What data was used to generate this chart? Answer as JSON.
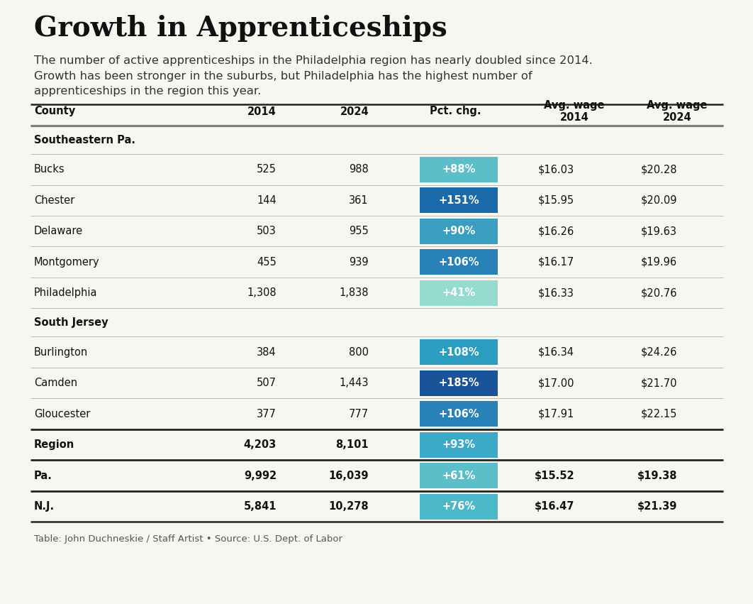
{
  "title": "Growth in Apprenticeships",
  "subtitle_lines": [
    "The number of active apprenticeships in the Philadelphia region has nearly doubled since 2014.",
    "Growth has been stronger in the suburbs, but Philadelphia has the highest number of",
    "apprenticeships in the region this year."
  ],
  "col_headers": [
    "County",
    "2014",
    "2024",
    "Pct. chg.",
    "Avg. wage\n2014",
    "Avg. wage\n2024"
  ],
  "rows": [
    {
      "county": "Bucks",
      "val2014": "525",
      "val2024": "988",
      "pct": "+88%",
      "wage2014": "$16.03",
      "wage2024": "$20.28",
      "pct_color": "#5bbec8",
      "bold": false,
      "kind": "data"
    },
    {
      "county": "Chester",
      "val2014": "144",
      "val2024": "361",
      "pct": "+151%",
      "wage2014": "$15.95",
      "wage2024": "$20.09",
      "pct_color": "#1a6aaa",
      "bold": false,
      "kind": "data"
    },
    {
      "county": "Delaware",
      "val2014": "503",
      "val2024": "955",
      "pct": "+90%",
      "wage2014": "$16.26",
      "wage2024": "$19.63",
      "pct_color": "#3a9ec0",
      "bold": false,
      "kind": "data"
    },
    {
      "county": "Montgomery",
      "val2014": "455",
      "val2024": "939",
      "pct": "+106%",
      "wage2014": "$16.17",
      "wage2024": "$19.96",
      "pct_color": "#2882b8",
      "bold": false,
      "kind": "data"
    },
    {
      "county": "Philadelphia",
      "val2014": "1,308",
      "val2024": "1,838",
      "pct": "+41%",
      "wage2014": "$16.33",
      "wage2024": "$20.76",
      "pct_color": "#96dbd0",
      "bold": false,
      "kind": "data"
    },
    {
      "county": "Burlington",
      "val2014": "384",
      "val2024": "800",
      "pct": "+108%",
      "wage2014": "$16.34",
      "wage2024": "$24.26",
      "pct_color": "#2a9dc0",
      "bold": false,
      "kind": "data"
    },
    {
      "county": "Camden",
      "val2014": "507",
      "val2024": "1,443",
      "pct": "+185%",
      "wage2014": "$17.00",
      "wage2024": "$21.70",
      "pct_color": "#1a5498",
      "bold": false,
      "kind": "data"
    },
    {
      "county": "Gloucester",
      "val2014": "377",
      "val2024": "777",
      "pct": "+106%",
      "wage2014": "$17.91",
      "wage2024": "$22.15",
      "pct_color": "#2882b8",
      "bold": false,
      "kind": "data"
    },
    {
      "county": "Region",
      "val2014": "4,203",
      "val2024": "8,101",
      "pct": "+93%",
      "wage2014": "",
      "wage2024": "",
      "pct_color": "#3aaac8",
      "bold": true,
      "kind": "summary"
    },
    {
      "county": "Pa.",
      "val2014": "9,992",
      "val2024": "16,039",
      "pct": "+61%",
      "wage2014": "$15.52",
      "wage2024": "$19.38",
      "pct_color": "#5bbec8",
      "bold": true,
      "kind": "summary"
    },
    {
      "county": "N.J.",
      "val2014": "5,841",
      "val2024": "10,278",
      "pct": "+76%",
      "wage2014": "$16.47",
      "wage2024": "$21.39",
      "pct_color": "#4ab8c8",
      "bold": true,
      "kind": "summary"
    }
  ],
  "section_headers": [
    {
      "label": "Southeastern Pa.",
      "before_row": 0
    },
    {
      "label": "South Jersey",
      "before_row": 5
    }
  ],
  "footer": "Table: John Duchneskie / Staff Artist • Source: U.S. Dept. of Labor",
  "bg_color": "#f7f7f2",
  "thick_line_color": "#222222",
  "thin_line_color": "#bbbbbb",
  "text_color": "#111111",
  "footer_color": "#555555"
}
